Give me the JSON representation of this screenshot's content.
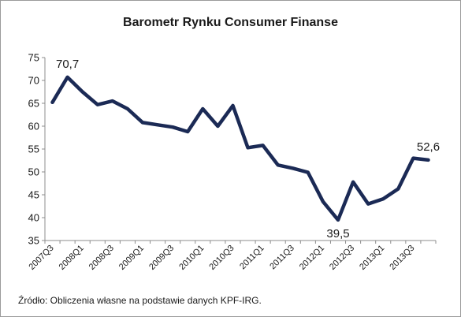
{
  "chart_data": {
    "type": "line",
    "title": "Barometr Rynku Consumer Finanse",
    "source": "Źródło: Obliczenia własne na podstawie danych KPF-IRG.",
    "xlabel": "",
    "ylabel": "",
    "ylim": [
      35,
      75
    ],
    "yticks": [
      35,
      40,
      45,
      50,
      55,
      60,
      65,
      70,
      75
    ],
    "grid": false,
    "line_color": "#1b2a55",
    "x": [
      "2007Q3",
      "2007Q4",
      "2008Q1",
      "2008Q2",
      "2008Q3",
      "2008Q4",
      "2009Q1",
      "2009Q2",
      "2009Q3",
      "2009Q4",
      "2010Q1",
      "2010Q2",
      "2010Q3",
      "2010Q4",
      "2011Q1",
      "2011Q2",
      "2011Q3",
      "2011Q4",
      "2012Q1",
      "2012Q2",
      "2012Q3",
      "2012Q4",
      "2013Q1",
      "2013Q2",
      "2013Q3",
      "2013Q4"
    ],
    "x_tick_labels": [
      "2007Q3",
      "",
      "2008Q1",
      "",
      "2008Q3",
      "",
      "2009Q1",
      "",
      "2009Q3",
      "",
      "2010Q1",
      "",
      "2010Q3",
      "",
      "2011Q1",
      "",
      "2011Q3",
      "",
      "2012Q1",
      "",
      "2012Q3",
      "",
      "2013Q1",
      "",
      "2013Q3",
      ""
    ],
    "series": [
      {
        "values": [
          65.2,
          70.7,
          67.5,
          64.7,
          65.5,
          63.8,
          60.8,
          60.3,
          59.8,
          58.8,
          63.8,
          60.0,
          64.5,
          55.3,
          55.8,
          51.5,
          50.8,
          49.9,
          43.5,
          39.5,
          47.8,
          43.0,
          44.1,
          46.3,
          53.0,
          52.6
        ]
      }
    ],
    "annotations": [
      {
        "index": 1,
        "text": "70,7",
        "position": "above"
      },
      {
        "index": 19,
        "text": "39,5",
        "position": "below"
      },
      {
        "index": 25,
        "text": "52,6",
        "position": "above"
      }
    ]
  }
}
